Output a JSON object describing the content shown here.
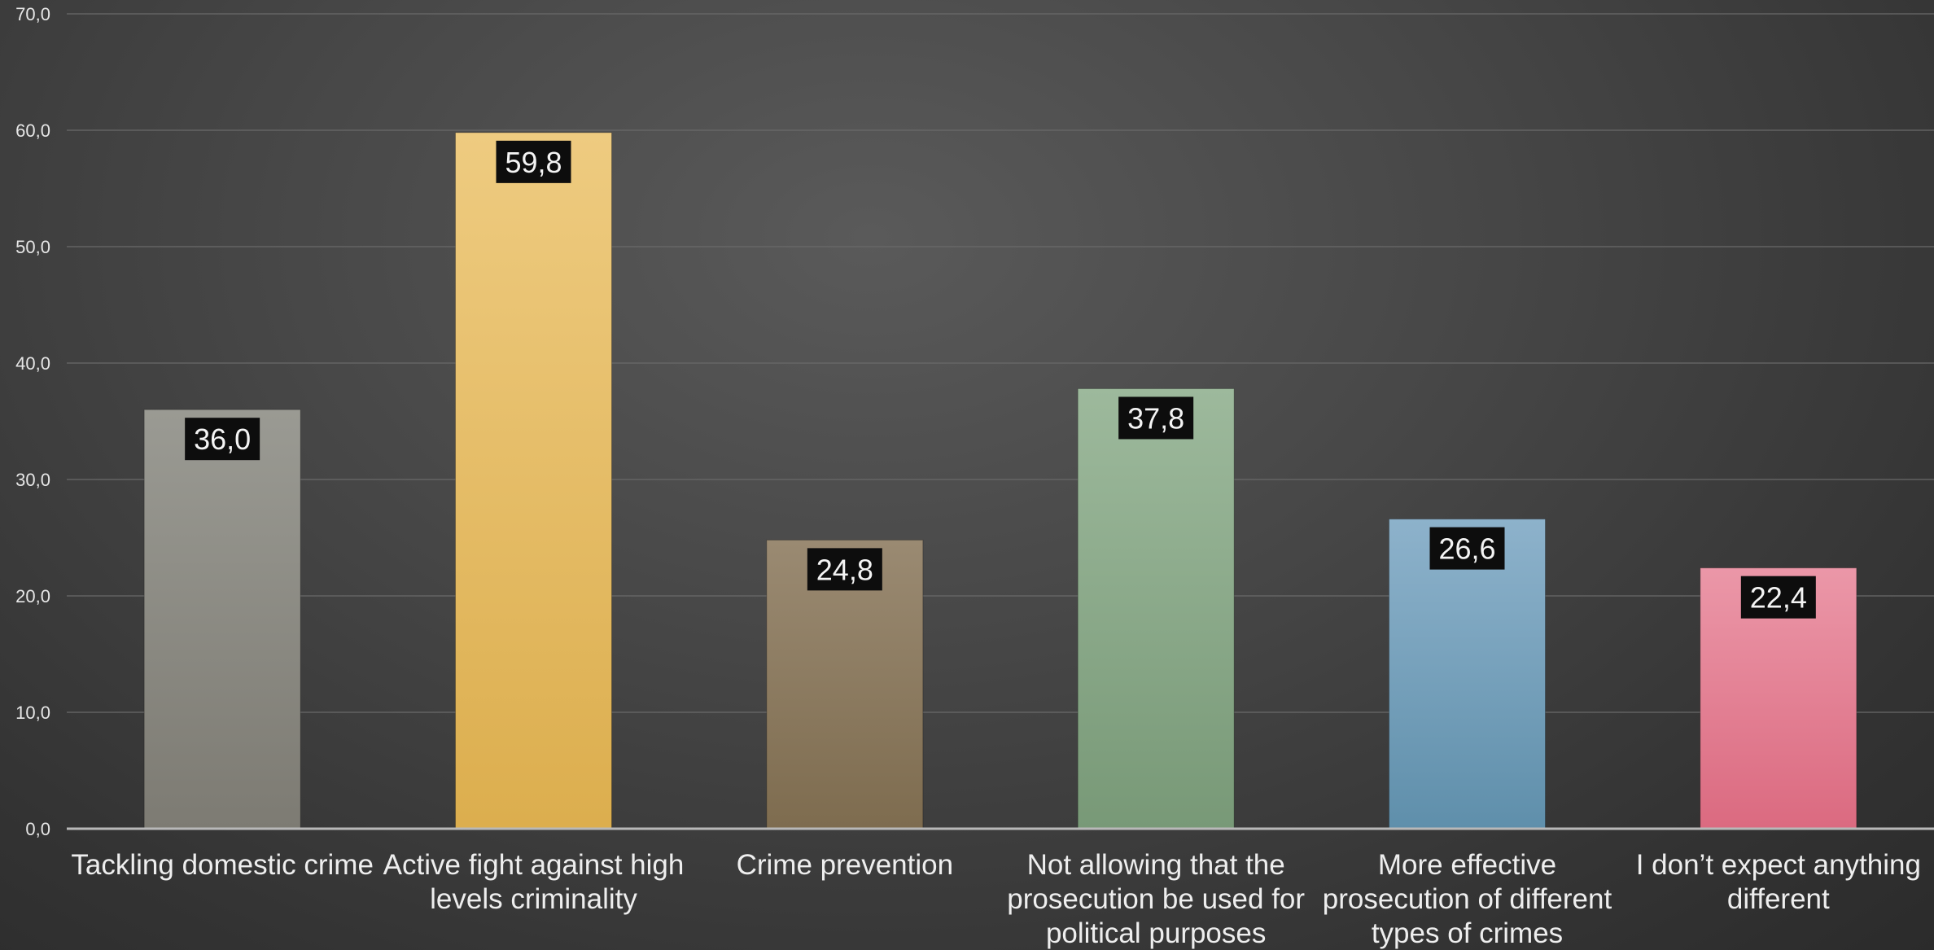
{
  "chart_data": {
    "type": "bar",
    "categories": [
      "Tackling domestic crime",
      "Active fight against high levels criminality",
      "Crime prevention",
      "Not allowing that the prosecution be used for political purposes",
      "More effective prosecution of different types of crimes",
      "I don’t expect anything different"
    ],
    "category_lines": [
      [
        "Tackling domestic crime"
      ],
      [
        "Active fight against high",
        "levels criminality"
      ],
      [
        "Crime prevention"
      ],
      [
        "Not allowing that the",
        "prosecution be used for",
        "political purposes"
      ],
      [
        "More effective",
        "prosecution of different",
        "types of crimes"
      ],
      [
        "I don’t expect anything",
        "different"
      ]
    ],
    "values": [
      36.0,
      59.8,
      24.8,
      37.8,
      26.6,
      22.4
    ],
    "value_labels": [
      "36,0",
      "59,8",
      "24,8",
      "37,8",
      "26,6",
      "22,4"
    ],
    "bar_colors": [
      [
        "#9a9a93",
        "#7d7b73"
      ],
      [
        "#eecb80",
        "#dcae4e"
      ],
      [
        "#9a8a72",
        "#7e6c4f"
      ],
      [
        "#9db99c",
        "#789977"
      ],
      [
        "#8db2cb",
        "#5f8fab"
      ],
      [
        "#eb97a8",
        "#db6a80"
      ]
    ],
    "ylim": [
      0,
      70
    ],
    "yticks": [
      0,
      10,
      20,
      30,
      40,
      50,
      60,
      70
    ],
    "ytick_labels": [
      "0,0",
      "10,0",
      "20,0",
      "30,0",
      "40,0",
      "50,0",
      "60,0",
      "70,0"
    ],
    "title": "",
    "xlabel": "",
    "ylabel": "",
    "grid": true,
    "legend": "none"
  }
}
